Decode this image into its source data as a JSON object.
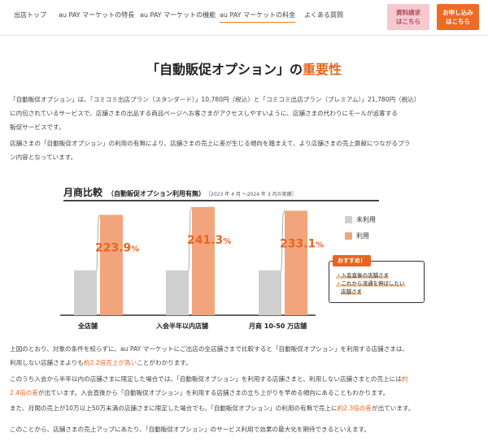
{
  "nav": {
    "items": [
      "出店トップ",
      "au PAY マーケットの特長",
      "au PAY マーケットの機能",
      "au PAY マーケットの料金",
      "よくある質問"
    ],
    "active_index": 3,
    "btn_request_line1": "資料請求",
    "btn_request_line2": "はこちら",
    "btn_apply_line1": "お申し込み",
    "btn_apply_line2": "はこちら"
  },
  "heading": {
    "prefix": "「自動販促オプション」の",
    "accent": "重要性"
  },
  "intro": {
    "line1": "「自動販促オプション」は、「コミコミ出店プラン（スタンダード）」10,780円（税込）と「コミコミ出店プラン（プレミアム）」21,780円（税込）",
    "line2": "に内包されているサービスで、店舗さまの出品する商品ページへお客さまがアクセスしやすいように、店舗さまの代わりにモールが追客する",
    "line3": "販促サービスです。",
    "line4": "店舗さまの「自動販促オプション」の利用の有無により、店舗さまの売上に差が生じる傾向を踏まえて、より店舗さまの売上貢献につながるプラ",
    "line5": "ン内容となっています。"
  },
  "chart_panel": {
    "title": "月商比較",
    "subtitle": "（自動販促オプション利用有無）",
    "period": "［2023 年 4 月 ～2024 年 3 月の実績］",
    "legend_unused": "未利用",
    "legend_used": "利用",
    "recommend_tag": "おすすめ！",
    "recommend_1": "・入会直後の店舗さま",
    "recommend_2": "・これから流通を伸ばしたい",
    "recommend_3": "店舗さま"
  },
  "chart_data": {
    "type": "bar",
    "title": "月商比較",
    "categories": [
      "全店舗",
      "入会半年以内店舗",
      "月商 10-50 万店舗"
    ],
    "series": [
      {
        "name": "未利用",
        "values": [
          100,
          100,
          100
        ],
        "color": "#cfcfcf"
      },
      {
        "name": "利用",
        "values": [
          223.9,
          241.3,
          233.1
        ],
        "color": "#f2a57c"
      }
    ],
    "data_labels": [
      "223.9%",
      "241.3%",
      "233.1%"
    ],
    "colors": {
      "unused": "#cfcfcf",
      "used": "#f2a57c",
      "label": "#e8651f"
    },
    "ylim": [
      0,
      250
    ],
    "legend": "right"
  },
  "bottom": {
    "p1a": "上図のとおり、対象の条件を絞らずに、au PAY マーケットにご出店の全店舗さまで比較すると「自動販促オプション」を利用する店舗さまは、",
    "p1b_pre": "利用しない店舗さまよりも",
    "p1b_hl": "約2.2倍売上が高い",
    "p1b_post": "ことがわかります。",
    "p2a_pre": "このうち入会から半年以内の店舗さまに限定した場合では、「自動販促オプション」を利用する店舗さまと、利用しない店舗さまとの売上には",
    "p2a_hl": "約",
    "p2b_hl": "2.4倍の差",
    "p2b_post": "が出ています。入会直後から「自動販促オプション」を利用する店舗さまの立ち上がりを早める傾向にあることもわかります。",
    "p3_pre": "また、月間の売上が10万以上50万未満の店舗さまに限定した場合でも、「自動販促オプション」の利用の有無で売上に",
    "p3_hl": "約2.3倍の差",
    "p3_post": "が出ています。",
    "p4": "このことから、店舗さまの売上アップにあたり、「自動販促オプション」のサービス利用で効果の最大化を期待できるといえます。"
  }
}
